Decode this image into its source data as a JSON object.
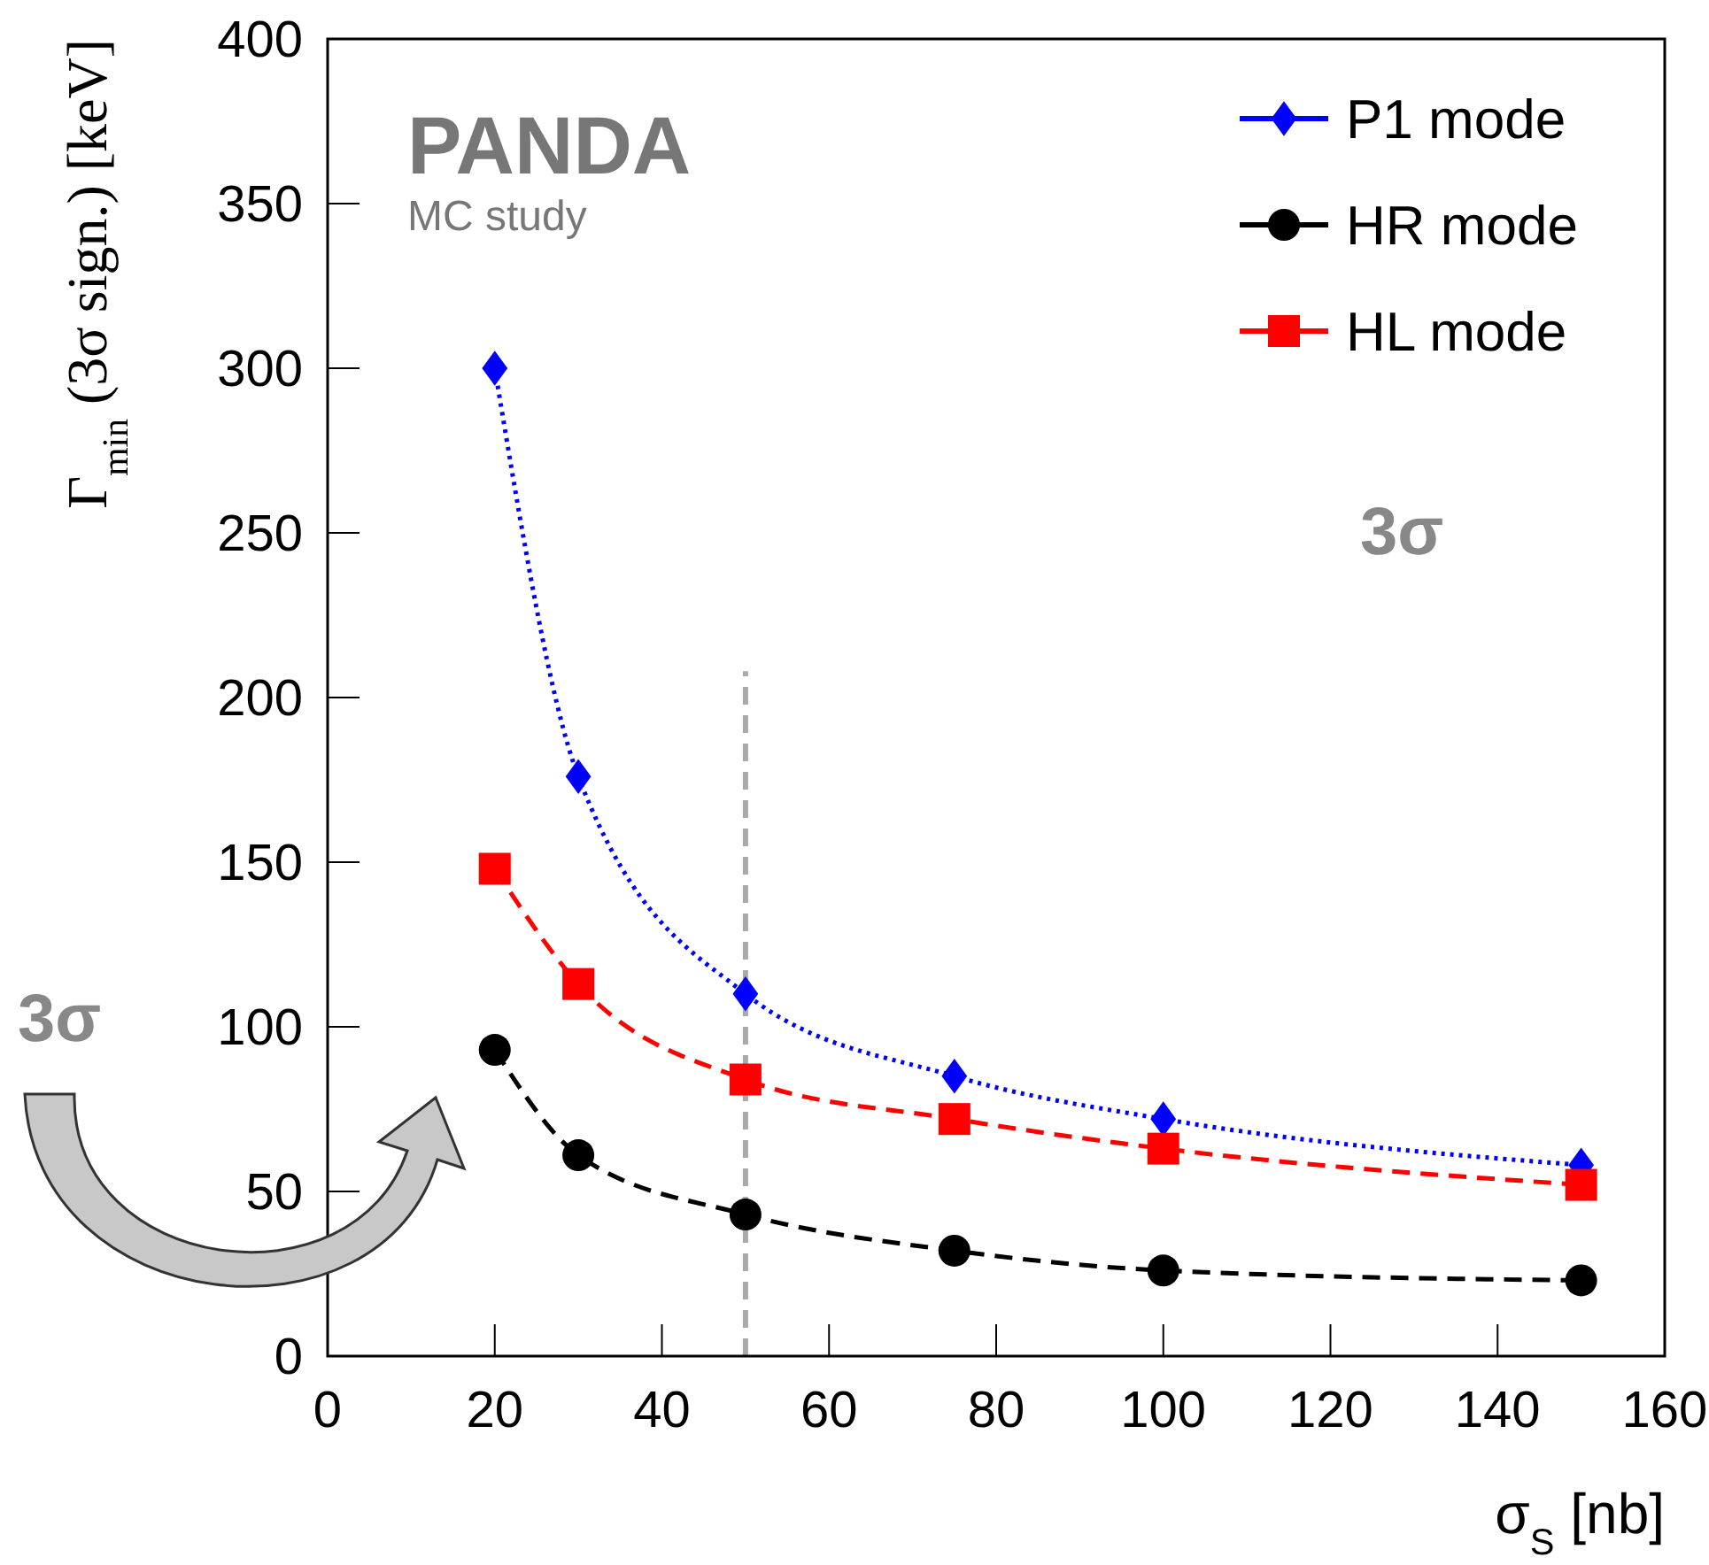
{
  "chart_data": {
    "type": "line",
    "xlabel": "σ$_{S}$ [nb]",
    "ylabel": "Γ$_{min}$ (3σ sign.) [keV]",
    "xlim": [
      0,
      160
    ],
    "xticks": [
      0,
      20,
      40,
      60,
      80,
      100,
      120,
      140,
      160
    ],
    "ylim": [
      0,
      400
    ],
    "yticks": [
      0,
      50,
      100,
      150,
      200,
      250,
      300,
      350,
      400
    ],
    "grid": false,
    "legend": "top right",
    "series": [
      {
        "name": "P1 mode",
        "color": "#0000ff",
        "marker": "diamond",
        "line_style": "dotted",
        "x": [
          20,
          30,
          50,
          75,
          100,
          150
        ],
        "values": [
          300,
          176,
          110,
          85,
          72,
          58
        ]
      },
      {
        "name": "HR mode",
        "color": "#000000",
        "marker": "circle",
        "line_style": "dashed",
        "x": [
          20,
          30,
          50,
          75,
          100,
          150
        ],
        "values": [
          93,
          61,
          43,
          32,
          26,
          23
        ]
      },
      {
        "name": "HL mode",
        "color": "#ff0000",
        "marker": "square",
        "line_style": "dashed",
        "x": [
          20,
          30,
          50,
          75,
          100,
          150
        ],
        "values": [
          148,
          113,
          84,
          72,
          63,
          52
        ]
      }
    ],
    "ref_lines": [
      {
        "axis": "x",
        "value": 50,
        "color": "#aaaaaa",
        "line_style": "dashed"
      }
    ],
    "annotations": [
      "PANDA",
      "MC study",
      "3σ",
      "3σ"
    ]
  }
}
